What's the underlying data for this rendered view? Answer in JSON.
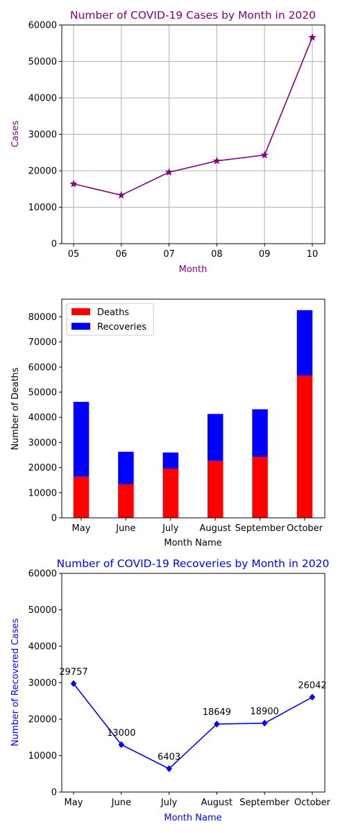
{
  "chart_data": [
    {
      "type": "line",
      "title": "Number of COVID-19 Cases by Month in 2020",
      "xlabel": "Month",
      "ylabel": "Cases",
      "categories": [
        "05",
        "06",
        "07",
        "08",
        "09",
        "10"
      ],
      "series": [
        {
          "values": [
            16400,
            13300,
            19600,
            22700,
            24300,
            56600
          ]
        }
      ],
      "ylim": [
        0,
        60000
      ],
      "yticks": [
        0,
        10000,
        20000,
        30000,
        40000,
        50000,
        60000
      ],
      "grid": true,
      "marker": "star",
      "color": "#800080"
    },
    {
      "type": "bar",
      "stacked": true,
      "title": "",
      "xlabel": "Month Name",
      "ylabel": "Number of Deaths",
      "categories": [
        "May",
        "June",
        "July",
        "August",
        "September",
        "October"
      ],
      "series": [
        {
          "name": "Deaths",
          "color": "#ff0000",
          "values": [
            16400,
            13300,
            19600,
            22700,
            24300,
            56600
          ]
        },
        {
          "name": "Recoveries",
          "color": "#0000ff",
          "values": [
            29757,
            13000,
            6403,
            18649,
            18900,
            26042
          ]
        }
      ],
      "ylim": [
        0,
        87000
      ],
      "yticks": [
        0,
        10000,
        20000,
        30000,
        40000,
        50000,
        60000,
        70000,
        80000
      ],
      "legend": "top-left"
    },
    {
      "type": "line",
      "title": "Number of COVID-19 Recoveries by Month in 2020",
      "xlabel": "Month Name",
      "ylabel": "Number of Recovered Cases",
      "categories": [
        "May",
        "June",
        "July",
        "August",
        "September",
        "October"
      ],
      "series": [
        {
          "values": [
            29757,
            13000,
            6403,
            18649,
            18900,
            26042
          ]
        }
      ],
      "data_labels": [
        "29757",
        "13000",
        "6403",
        "18649",
        "18900",
        "26042"
      ],
      "ylim": [
        0,
        60000
      ],
      "yticks": [
        0,
        10000,
        20000,
        30000,
        40000,
        50000,
        60000
      ],
      "marker": "diamond",
      "color": "#0000ff"
    }
  ]
}
